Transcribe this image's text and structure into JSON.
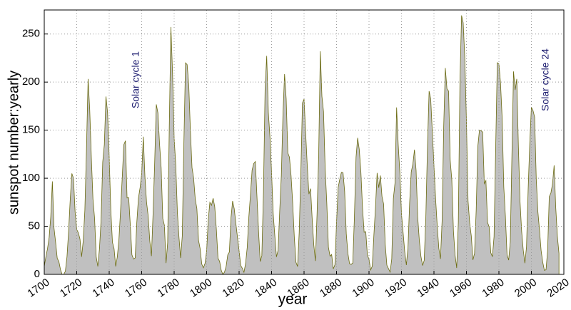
{
  "chart_data": {
    "type": "area",
    "x_label": "year",
    "y_label": "sunspot number:yearly",
    "annotations": [
      "Solar cycle 1",
      "Solar cycle 24"
    ],
    "color": "#c0c0c0",
    "line_color": "#6b6b10",
    "grid": true,
    "xlim": [
      1700,
      2020
    ],
    "ylim": [
      0,
      275
    ],
    "xticks": [
      1700,
      1720,
      1740,
      1760,
      1780,
      1800,
      1820,
      1840,
      1860,
      1880,
      1900,
      1920,
      1940,
      1960,
      1980,
      2000,
      2020
    ],
    "yticks": [
      0,
      50,
      100,
      150,
      200,
      250
    ],
    "x": [
      1700,
      1701,
      1702,
      1703,
      1704,
      1705,
      1706,
      1707,
      1708,
      1709,
      1710,
      1711,
      1712,
      1713,
      1714,
      1715,
      1716,
      1717,
      1718,
      1719,
      1720,
      1721,
      1722,
      1723,
      1724,
      1725,
      1726,
      1727,
      1728,
      1729,
      1730,
      1731,
      1732,
      1733,
      1734,
      1735,
      1736,
      1737,
      1738,
      1739,
      1740,
      1741,
      1742,
      1743,
      1744,
      1745,
      1746,
      1747,
      1748,
      1749,
      1750,
      1751,
      1752,
      1753,
      1754,
      1755,
      1756,
      1757,
      1758,
      1759,
      1760,
      1761,
      1762,
      1763,
      1764,
      1765,
      1766,
      1767,
      1768,
      1769,
      1770,
      1771,
      1772,
      1773,
      1774,
      1775,
      1776,
      1777,
      1778,
      1779,
      1780,
      1781,
      1782,
      1783,
      1784,
      1785,
      1786,
      1787,
      1788,
      1789,
      1790,
      1791,
      1792,
      1793,
      1794,
      1795,
      1796,
      1797,
      1798,
      1799,
      1800,
      1801,
      1802,
      1803,
      1804,
      1805,
      1806,
      1807,
      1808,
      1809,
      1810,
      1811,
      1812,
      1813,
      1814,
      1815,
      1816,
      1817,
      1818,
      1819,
      1820,
      1821,
      1822,
      1823,
      1824,
      1825,
      1826,
      1827,
      1828,
      1829,
      1830,
      1831,
      1832,
      1833,
      1834,
      1835,
      1836,
      1837,
      1838,
      1839,
      1840,
      1841,
      1842,
      1843,
      1844,
      1845,
      1846,
      1847,
      1848,
      1849,
      1850,
      1851,
      1852,
      1853,
      1854,
      1855,
      1856,
      1857,
      1858,
      1859,
      1860,
      1861,
      1862,
      1863,
      1864,
      1865,
      1866,
      1867,
      1868,
      1869,
      1870,
      1871,
      1872,
      1873,
      1874,
      1875,
      1876,
      1877,
      1878,
      1879,
      1880,
      1881,
      1882,
      1883,
      1884,
      1885,
      1886,
      1887,
      1888,
      1889,
      1890,
      1891,
      1892,
      1893,
      1894,
      1895,
      1896,
      1897,
      1898,
      1899,
      1900,
      1901,
      1902,
      1903,
      1904,
      1905,
      1906,
      1907,
      1908,
      1909,
      1910,
      1911,
      1912,
      1913,
      1914,
      1915,
      1916,
      1917,
      1918,
      1919,
      1920,
      1921,
      1922,
      1923,
      1924,
      1925,
      1926,
      1927,
      1928,
      1929,
      1930,
      1931,
      1932,
      1933,
      1934,
      1935,
      1936,
      1937,
      1938,
      1939,
      1940,
      1941,
      1942,
      1943,
      1944,
      1945,
      1946,
      1947,
      1948,
      1949,
      1950,
      1951,
      1952,
      1953,
      1954,
      1955,
      1956,
      1957,
      1958,
      1959,
      1960,
      1961,
      1962,
      1963,
      1964,
      1965,
      1966,
      1967,
      1968,
      1969,
      1970,
      1971,
      1972,
      1973,
      1974,
      1975,
      1976,
      1977,
      1978,
      1979,
      1980,
      1981,
      1982,
      1983,
      1984,
      1985,
      1986,
      1987,
      1988,
      1989,
      1990,
      1991,
      1992,
      1993,
      1994,
      1995,
      1996,
      1997,
      1998,
      1999,
      2000,
      2001,
      2002,
      2003,
      2004,
      2005,
      2006,
      2007,
      2008,
      2009,
      2010,
      2011,
      2012,
      2013,
      2014,
      2015,
      2016,
      2017
    ],
    "values": [
      8.3,
      18.3,
      26.7,
      38.3,
      60,
      96.7,
      48.3,
      33.3,
      16.7,
      13.3,
      5,
      0,
      0,
      3.3,
      18.3,
      45,
      78.3,
      105,
      100,
      65,
      46.7,
      43.3,
      36.7,
      18.3,
      35,
      66.7,
      130,
      203.3,
      171.7,
      121.7,
      78.3,
      58.3,
      18.3,
      8.3,
      26.7,
      56.7,
      116.7,
      135,
      185,
      168.3,
      121.7,
      66.7,
      33.3,
      26.7,
      8.3,
      18.3,
      36.7,
      66.7,
      100,
      134.8,
      139,
      79.5,
      79.7,
      51.2,
      20.3,
      16,
      17,
      54,
      79.3,
      90,
      104.8,
      143.2,
      102,
      75.2,
      60.7,
      34.8,
      19,
      63,
      116.3,
      176.8,
      168,
      136,
      110.8,
      58,
      51,
      11.7,
      33,
      154.2,
      257.3,
      209.8,
      141.3,
      113.5,
      64.2,
      38,
      17,
      40.2,
      138.2,
      220,
      218.2,
      196.8,
      149.8,
      111,
      100,
      78.2,
      68.3,
      35.5,
      26.7,
      10.7,
      6.8,
      11.3,
      24.2,
      56.7,
      75,
      71.8,
      79.2,
      70.3,
      46.8,
      16.8,
      13.5,
      4.2,
      0,
      2.3,
      8.3,
      20.3,
      23.2,
      59,
      76.3,
      68.3,
      52.9,
      38.5,
      24.2,
      9.2,
      6.3,
      2.2,
      11.4,
      28.2,
      59.9,
      83,
      108.5,
      115.2,
      117.4,
      80.8,
      44.3,
      13.4,
      19.5,
      85.8,
      192.7,
      227.3,
      168.7,
      143,
      105.5,
      63.3,
      40.3,
      18.1,
      25.1,
      65.8,
      102.7,
      166.3,
      208.3,
      182.5,
      126.3,
      122,
      102.7,
      74.1,
      39,
      12.7,
      8.2,
      43.4,
      104.4,
      178.3,
      182.2,
      146.6,
      112.1,
      83.5,
      89.2,
      57.8,
      30.7,
      13.9,
      62.8,
      123.6,
      232,
      185.3,
      169.2,
      110.1,
      74.5,
      28.3,
      18.9,
      20.7,
      5.7,
      10,
      53.7,
      90.5,
      99,
      106.1,
      105.8,
      86.3,
      42.4,
      21.8,
      11.2,
      10.4,
      11.8,
      59.5,
      121.7,
      142,
      130,
      106.6,
      69.4,
      43.8,
      44.4,
      20.2,
      15.7,
      4.6,
      8.5,
      40.8,
      70.1,
      105.5,
      90.1,
      102.8,
      80.9,
      73.2,
      30.9,
      9.5,
      6,
      2.4,
      16.1,
      79,
      95,
      173.6,
      134.6,
      105.7,
      62.7,
      43.5,
      23.7,
      9.7,
      27.9,
      74,
      106.5,
      114.7,
      129.7,
      108.2,
      59.4,
      35.1,
      18.6,
      9.2,
      14.6,
      60.2,
      132.8,
      190.6,
      182.6,
      148,
      113,
      79.2,
      50.8,
      27.1,
      16.1,
      55.3,
      154.3,
      214.7,
      193,
      190.7,
      118.9,
      98.3,
      45,
      20.1,
      6.6,
      54.2,
      200.7,
      269.3,
      261.7,
      225.1,
      159,
      76.4,
      53.4,
      39.9,
      15,
      22,
      66.8,
      132.9,
      150,
      149.4,
      148,
      94.4,
      97.6,
      54.1,
      49.2,
      22.5,
      18.4,
      39.3,
      131,
      220.1,
      218.9,
      198.9,
      162.4,
      91,
      60.5,
      20.6,
      14.8,
      33.9,
      123,
      211.1,
      191.8,
      203.3,
      133,
      76.1,
      44.9,
      25.1,
      11.6,
      28.9,
      88.3,
      136.3,
      173.9,
      170.4,
      163.6,
      99.3,
      65.3,
      45.8,
      24.7,
      12.6,
      4.2,
      4.8,
      24.9,
      80.8,
      84.5,
      94,
      113.3,
      69.8,
      39.8,
      21.7
    ]
  }
}
